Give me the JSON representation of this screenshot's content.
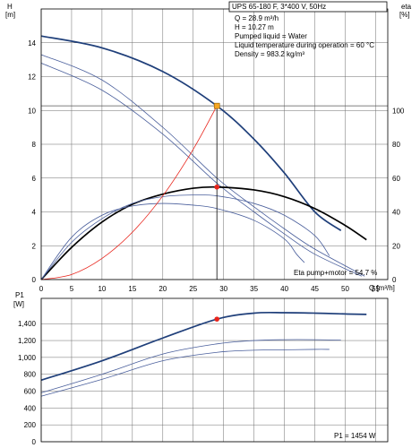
{
  "chart_data": [
    {
      "type": "line",
      "title": "UPS 65-180 F, 3*400 V, 50Hz",
      "xlabel": "Q [m³/h]",
      "ylabel": "H [m]",
      "y2label": "eta [%]",
      "xlim": [
        0,
        57
      ],
      "ylim": [
        0,
        16
      ],
      "y2lim": [
        0,
        160
      ],
      "x_ticks": [
        0,
        5,
        10,
        15,
        20,
        25,
        30,
        35,
        40,
        45,
        50,
        55
      ],
      "y_ticks": [
        0,
        2,
        4,
        6,
        8,
        10,
        12,
        14
      ],
      "y2_ticks": [
        0,
        20,
        40,
        60,
        80,
        100
      ],
      "grid": true,
      "info_lines": [
        "Q = 28.9 m³/h",
        "H = 10.27 m",
        "Pumped liquid = Water",
        "Liquid temperature during operation = 60 °C",
        "Density = 983.2 kg/m³"
      ],
      "eta_label": "Eta pump+motor = 54.7 %",
      "operating_point": {
        "Q": 28.9,
        "H": 10.27,
        "eta": 54.7,
        "color": "#f5a623"
      },
      "series": [
        {
          "curve": "H",
          "speed": "max",
          "color": "#1f3f7a",
          "x": [
            0,
            10,
            20,
            28.9,
            35,
            40,
            45,
            49.3
          ],
          "y": [
            14.4,
            13.7,
            12.3,
            10.27,
            8.3,
            6.3,
            4.0,
            2.9
          ]
        },
        {
          "curve": "H",
          "speed": "mid",
          "color": "#4a5f9c",
          "x": [
            0,
            10,
            20,
            28.9,
            35,
            40,
            45,
            53.2
          ],
          "y": [
            13.3,
            11.8,
            9.0,
            6.0,
            4.3,
            3.0,
            1.8,
            0.2
          ]
        },
        {
          "curve": "H",
          "speed": "low",
          "color": "#4a5f9c",
          "x": [
            0,
            10,
            20,
            28.9,
            35,
            40,
            45,
            52.7
          ],
          "y": [
            12.8,
            11.2,
            8.6,
            5.7,
            4.0,
            2.7,
            1.5,
            0.2
          ]
        },
        {
          "curve": "eta",
          "speed": "max",
          "color": "#000000",
          "x": [
            0,
            5,
            10,
            15,
            20,
            25,
            28.9,
            35,
            40,
            45,
            50,
            53.5
          ],
          "y": [
            0,
            19,
            34,
            44.5,
            50.5,
            54,
            54.7,
            53,
            49,
            42,
            32,
            23.5
          ]
        },
        {
          "curve": "eta",
          "speed": "mid",
          "color": "#4a5f9c",
          "x": [
            0,
            5,
            10,
            15,
            20,
            25,
            28.9,
            35,
            40,
            45,
            47.4
          ],
          "y": [
            0,
            22,
            36,
            45,
            49,
            50,
            49.5,
            45,
            38,
            26,
            14
          ]
        },
        {
          "curve": "eta",
          "speed": "low",
          "color": "#4a5f9c",
          "x": [
            0,
            5,
            10,
            15,
            20,
            25,
            28.9,
            35,
            40,
            42,
            43.3
          ],
          "y": [
            0,
            25,
            38,
            43.5,
            45,
            44,
            42,
            35,
            24,
            15,
            10
          ]
        },
        {
          "curve": "system",
          "color": "#e8241b",
          "x": [
            0,
            5,
            10,
            15,
            20,
            25,
            28.9
          ],
          "y": [
            0,
            0.3,
            1.25,
            2.8,
            4.95,
            7.7,
            10.27
          ]
        }
      ]
    },
    {
      "type": "line",
      "ylabel": "P1 [W]",
      "xlim": [
        0,
        57
      ],
      "ylim": [
        0,
        1700
      ],
      "y_ticks": [
        0,
        200,
        400,
        600,
        800,
        1000,
        1200,
        1400
      ],
      "y_tick_labels": [
        "0",
        "200",
        "400",
        "600",
        "800",
        "1,000",
        "1,200",
        "1,400"
      ],
      "grid": true,
      "p1_label": "P1 = 1454 W",
      "operating_point": {
        "Q": 28.9,
        "P1": 1454,
        "color": "#e8241b"
      },
      "series": [
        {
          "speed": "max",
          "color": "#1f3f7a",
          "x": [
            0,
            10,
            20,
            28.9,
            35,
            40,
            45,
            50,
            53.5
          ],
          "y": [
            730,
            960,
            1230,
            1454,
            1525,
            1530,
            1525,
            1515,
            1510
          ]
        },
        {
          "speed": "mid",
          "color": "#4a5f9c",
          "x": [
            0,
            10,
            20,
            28.9,
            35,
            40,
            45,
            49.3
          ],
          "y": [
            580,
            800,
            1040,
            1160,
            1200,
            1210,
            1210,
            1205
          ]
        },
        {
          "speed": "low",
          "color": "#4a5f9c",
          "x": [
            0,
            10,
            20,
            28.9,
            35,
            40,
            45,
            47.4
          ],
          "y": [
            540,
            740,
            960,
            1060,
            1085,
            1090,
            1095,
            1095
          ]
        }
      ]
    }
  ]
}
